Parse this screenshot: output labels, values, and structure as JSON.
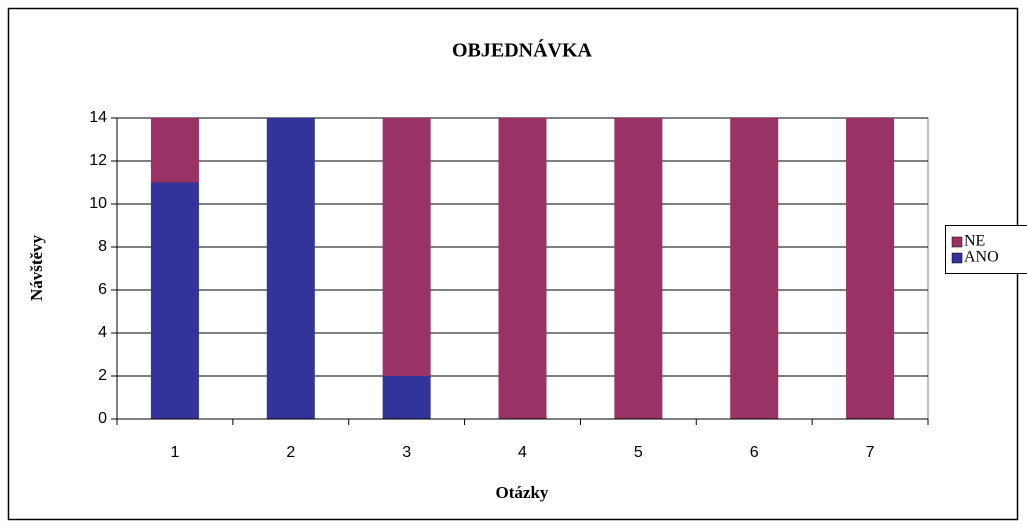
{
  "chart_data": {
    "type": "stacked_bar",
    "title": "OBJEDNÁVKA",
    "x_label": "Otázky",
    "y_label": "Návštěvy",
    "categories": [
      "1",
      "2",
      "3",
      "4",
      "5",
      "6",
      "7"
    ],
    "series": [
      {
        "name": "ANO",
        "color": "#333399",
        "values": [
          11,
          14,
          2,
          0,
          0,
          0,
          0
        ]
      },
      {
        "name": "NE",
        "color": "#993366",
        "values": [
          3,
          0,
          12,
          14,
          14,
          14,
          14
        ]
      }
    ],
    "ylim": [
      0,
      14
    ],
    "yticks": [
      0,
      2,
      4,
      6,
      8,
      10,
      12,
      14
    ],
    "grid": true,
    "legend": "right"
  }
}
